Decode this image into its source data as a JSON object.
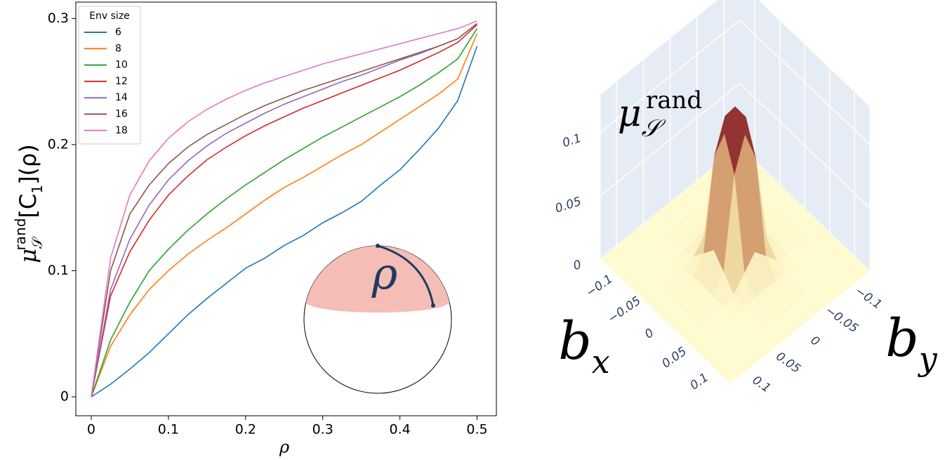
{
  "chart_data": [
    {
      "type": "line",
      "ylabel": {
        "base": "μ",
        "sub": "𝒮",
        "sup": "rand",
        "tail": "[C",
        "tail_sub": "1",
        "end": "](ρ)"
      },
      "xlabel": "ρ",
      "annotation": "ρ",
      "legend_title": "Env size",
      "legend": "upper left",
      "x": [
        0,
        0.025,
        0.05,
        0.075,
        0.1,
        0.125,
        0.15,
        0.175,
        0.2,
        0.225,
        0.25,
        0.275,
        0.3,
        0.325,
        0.35,
        0.375,
        0.4,
        0.425,
        0.45,
        0.475,
        0.5
      ],
      "xlim": [
        -0.02,
        0.525
      ],
      "xticks": [
        0,
        0.1,
        0.2,
        0.3,
        0.4,
        0.5
      ],
      "ylim": [
        -0.015,
        0.313
      ],
      "yticks": [
        0,
        0.1,
        0.2,
        0.3
      ],
      "series": [
        {
          "name": "6",
          "color": "#1f77b4",
          "values": [
            0,
            0.01,
            0.022,
            0.035,
            0.05,
            0.065,
            0.078,
            0.09,
            0.102,
            0.11,
            0.12,
            0.128,
            0.138,
            0.146,
            0.155,
            0.168,
            0.18,
            0.196,
            0.213,
            0.235,
            0.278
          ]
        },
        {
          "name": "8",
          "color": "#ff7f0e",
          "values": [
            0,
            0.04,
            0.065,
            0.085,
            0.1,
            0.113,
            0.124,
            0.134,
            0.145,
            0.156,
            0.166,
            0.174,
            0.183,
            0.192,
            0.2,
            0.21,
            0.22,
            0.23,
            0.24,
            0.252,
            0.288
          ]
        },
        {
          "name": "10",
          "color": "#2ca02c",
          "values": [
            0,
            0.045,
            0.075,
            0.1,
            0.117,
            0.132,
            0.145,
            0.157,
            0.168,
            0.178,
            0.188,
            0.197,
            0.206,
            0.214,
            0.222,
            0.23,
            0.238,
            0.247,
            0.257,
            0.268,
            0.292
          ]
        },
        {
          "name": "12",
          "color": "#d62728",
          "values": [
            0,
            0.08,
            0.115,
            0.14,
            0.16,
            0.175,
            0.188,
            0.198,
            0.207,
            0.215,
            0.222,
            0.229,
            0.235,
            0.241,
            0.247,
            0.253,
            0.259,
            0.266,
            0.273,
            0.281,
            0.295
          ]
        },
        {
          "name": "14",
          "color": "#9467bd",
          "values": [
            0,
            0.085,
            0.125,
            0.152,
            0.172,
            0.187,
            0.199,
            0.209,
            0.217,
            0.225,
            0.232,
            0.238,
            0.244,
            0.25,
            0.255,
            0.261,
            0.267,
            0.272,
            0.278,
            0.284,
            0.296
          ]
        },
        {
          "name": "16",
          "color": "#8c564b",
          "values": [
            0,
            0.1,
            0.145,
            0.168,
            0.185,
            0.198,
            0.208,
            0.216,
            0.224,
            0.231,
            0.237,
            0.243,
            0.248,
            0.253,
            0.258,
            0.263,
            0.268,
            0.273,
            0.278,
            0.284,
            0.296
          ]
        },
        {
          "name": "18",
          "color": "#e377c2",
          "values": [
            0,
            0.11,
            0.16,
            0.187,
            0.205,
            0.218,
            0.228,
            0.236,
            0.243,
            0.249,
            0.254,
            0.259,
            0.264,
            0.268,
            0.272,
            0.276,
            0.28,
            0.284,
            0.288,
            0.292,
            0.298
          ]
        }
      ]
    },
    {
      "type": "surface3d",
      "zlabel": {
        "base": "μ",
        "sub": "𝒮",
        "sup": "rand"
      },
      "xlabel": {
        "base": "b",
        "sub": "x"
      },
      "ylabel": {
        "base": "b",
        "sub": "y"
      },
      "x": [
        -0.13,
        -0.1,
        -0.06,
        -0.04,
        -0.02,
        0,
        0.02,
        0.04,
        0.06,
        0.1,
        0.13
      ],
      "y": [
        -0.13,
        -0.1,
        -0.06,
        -0.04,
        -0.02,
        0,
        0.02,
        0.04,
        0.06,
        0.1,
        0.13
      ],
      "xlim": [
        -0.13,
        0.13
      ],
      "ylim": [
        -0.13,
        0.13
      ],
      "zlim": [
        0,
        0.13
      ],
      "xticks": [
        {
          "value": -0.1,
          "label": "−0.1"
        },
        {
          "value": -0.05,
          "label": "−0.05"
        },
        0,
        0.05,
        0.1
      ],
      "yticks": [
        {
          "value": -0.1,
          "label": "−0.1"
        },
        {
          "value": -0.05,
          "label": "−0.05"
        },
        0,
        0.05,
        0.1
      ],
      "zticks": [
        0,
        0.05,
        0.1
      ],
      "colorscale": [
        "#fffbd0",
        "#e9c98e",
        "#b8654a",
        "#7d1422"
      ],
      "z": [
        [
          0,
          0,
          0,
          0,
          0,
          0,
          0,
          0,
          0,
          0,
          0
        ],
        [
          0,
          0,
          0,
          0,
          0,
          0,
          0,
          0,
          0,
          0,
          0
        ],
        [
          0,
          0,
          0,
          0.002,
          0.003,
          0.004,
          0.003,
          0.002,
          0,
          0,
          0
        ],
        [
          0,
          0,
          0.002,
          0.005,
          0.015,
          0.025,
          0.015,
          0.005,
          0.002,
          0,
          0
        ],
        [
          0,
          0,
          0.003,
          0.015,
          0.085,
          0.11,
          0.085,
          0.015,
          0.003,
          0,
          0
        ],
        [
          0,
          0,
          0.004,
          0.025,
          0.11,
          0.125,
          0.11,
          0.025,
          0.004,
          0,
          0
        ],
        [
          0,
          0,
          0.003,
          0.015,
          0.085,
          0.11,
          0.085,
          0.015,
          0.003,
          0,
          0
        ],
        [
          0,
          0,
          0.002,
          0.005,
          0.015,
          0.025,
          0.015,
          0.005,
          0.002,
          0,
          0
        ],
        [
          0,
          0,
          0,
          0.002,
          0.003,
          0.004,
          0.003,
          0.002,
          0,
          0,
          0
        ],
        [
          0,
          0,
          0,
          0,
          0,
          0,
          0,
          0,
          0,
          0,
          0
        ],
        [
          0,
          0,
          0,
          0,
          0,
          0,
          0,
          0,
          0,
          0,
          0
        ]
      ]
    }
  ]
}
